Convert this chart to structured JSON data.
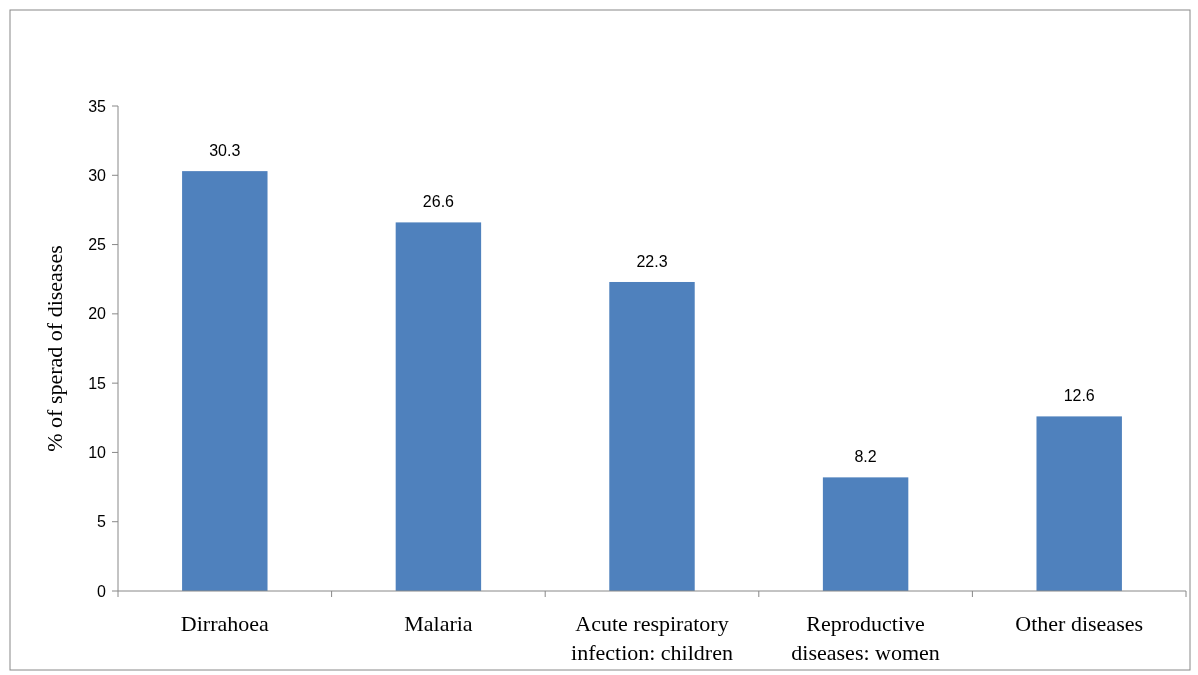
{
  "chart_data": {
    "type": "bar",
    "ylabel": "% of sperad of diseases",
    "categories": [
      "Dirrahoea",
      "Malaria",
      "Acute respiratory infection: children",
      "Reproductive diseases: women",
      "Other diseases"
    ],
    "values": [
      30.3,
      26.6,
      22.3,
      8.2,
      12.6
    ],
    "color": "#4f81bd",
    "ylim": [
      0,
      35
    ],
    "yticks": [
      0,
      5,
      10,
      15,
      20,
      25,
      30,
      35
    ],
    "grid": false,
    "data_labels": true
  }
}
